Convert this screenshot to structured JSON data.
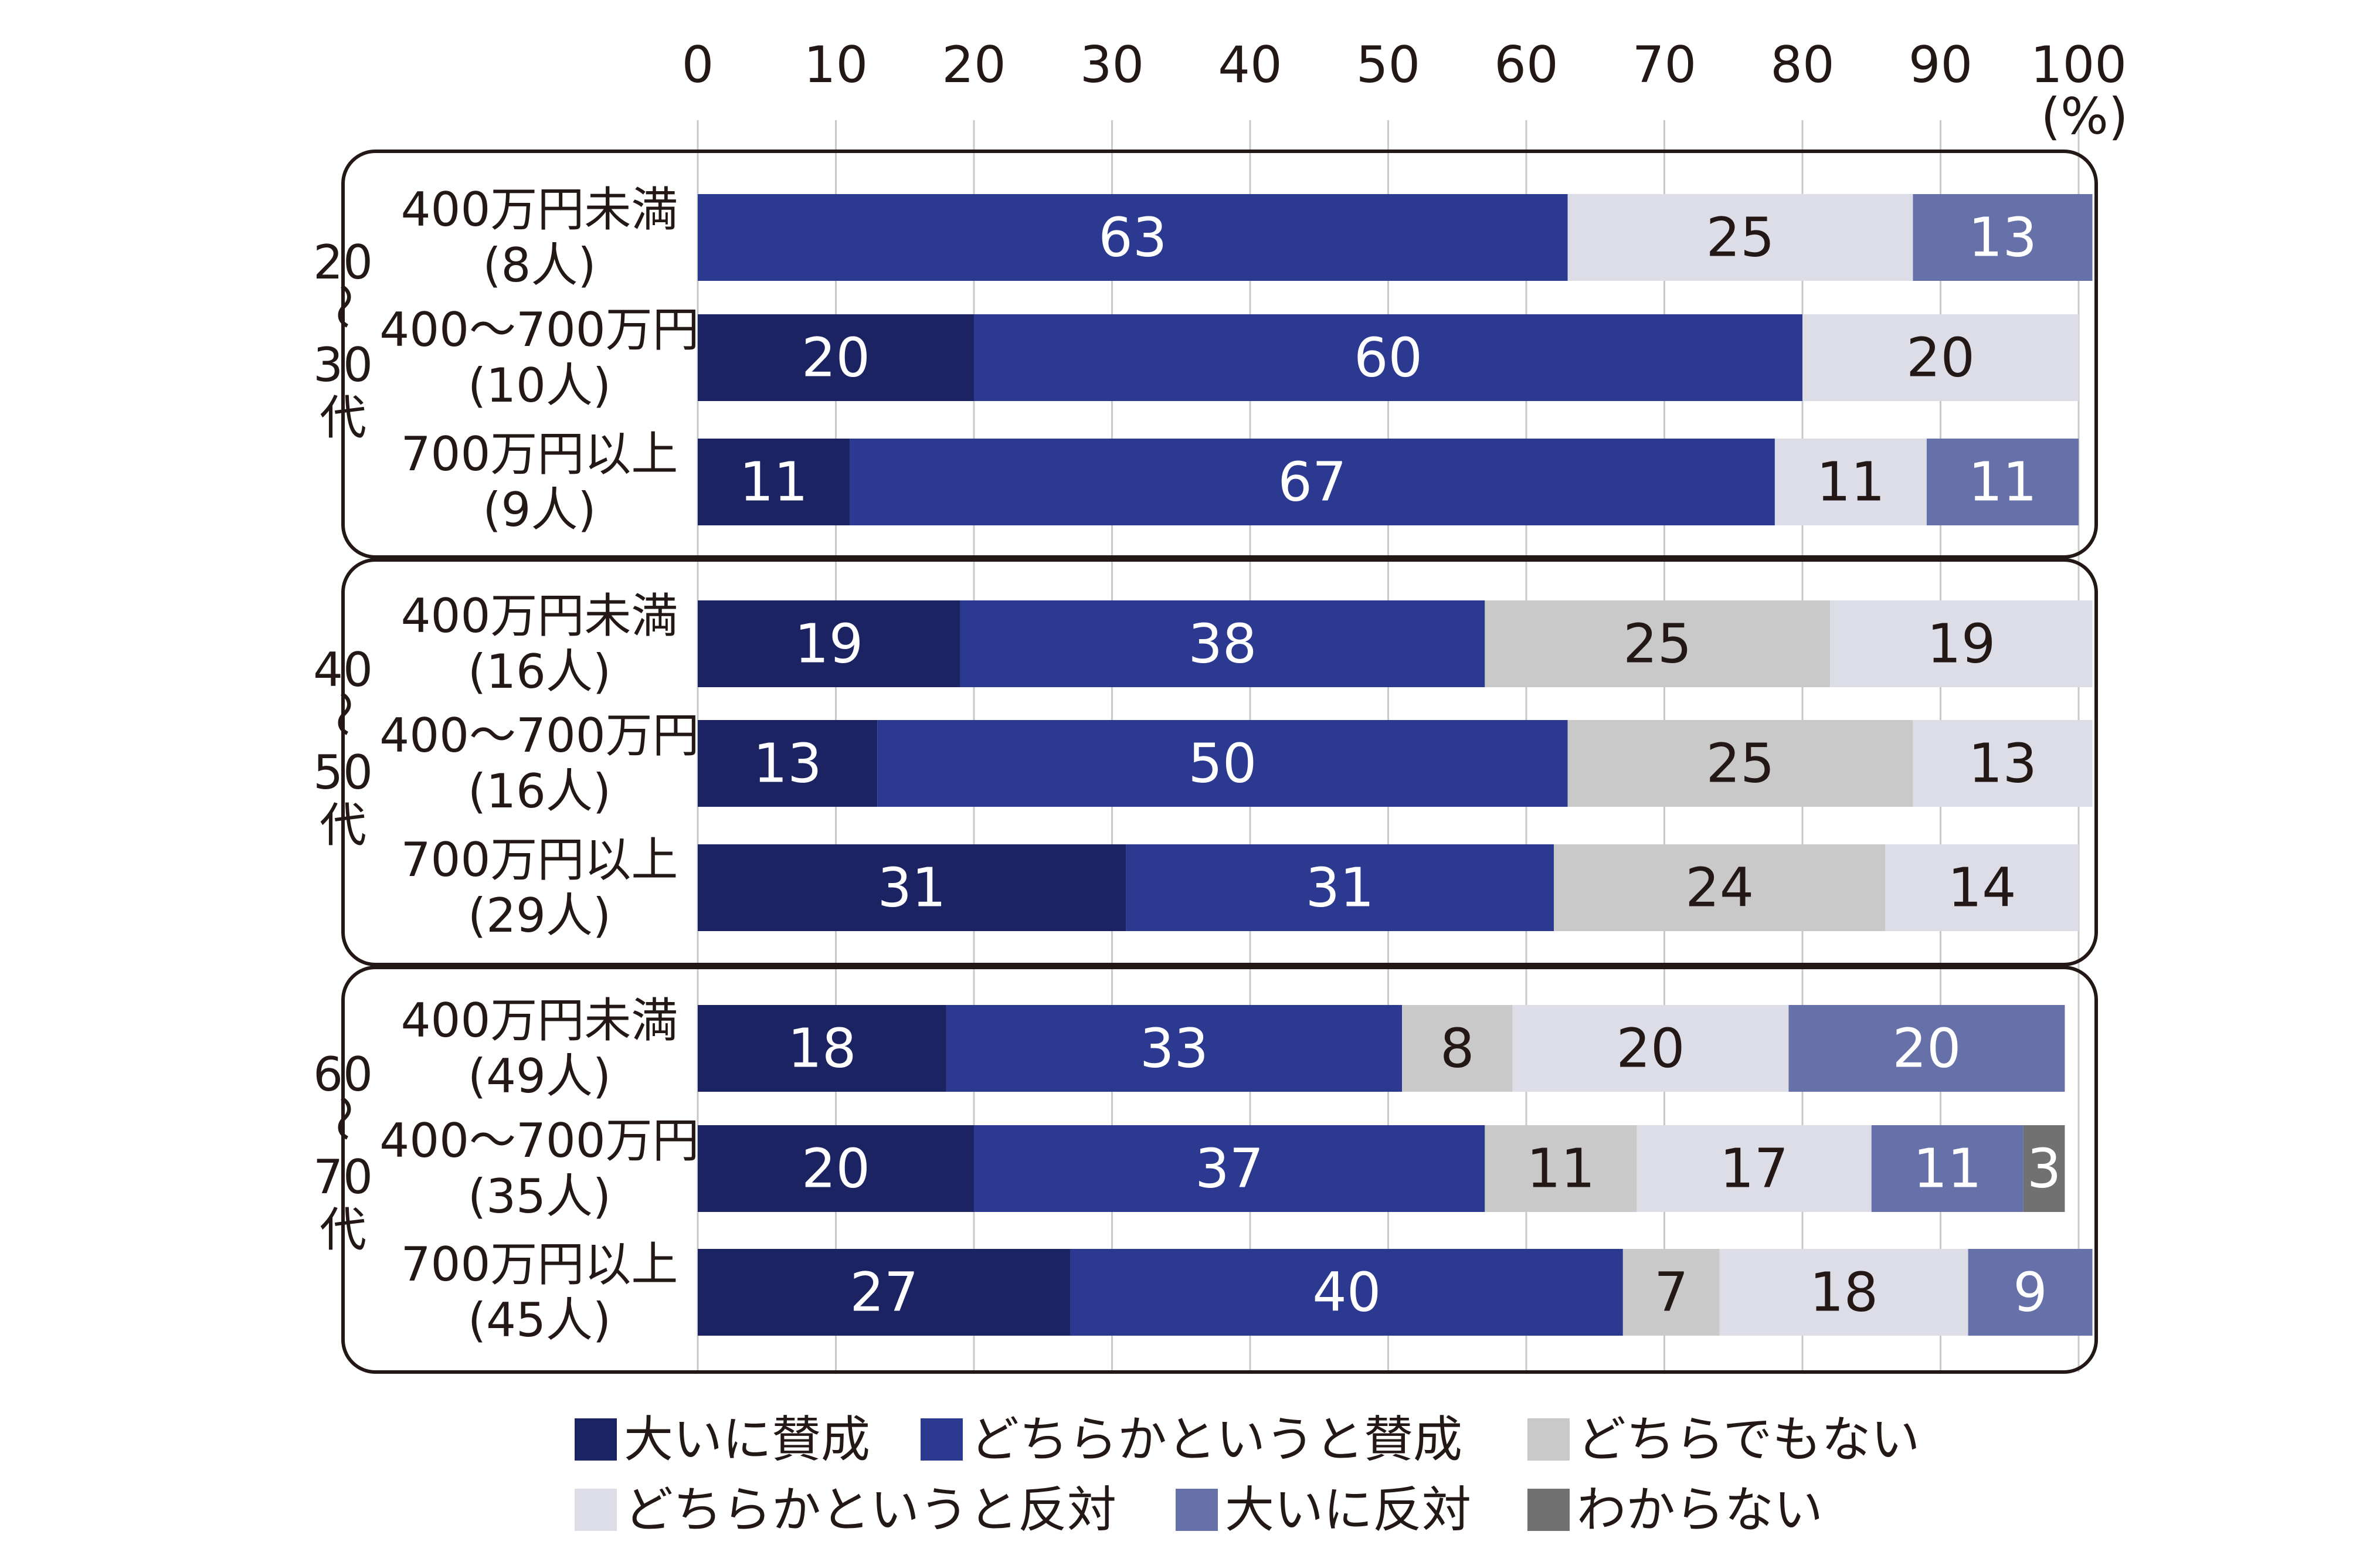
{
  "chart_data": {
    "type": "bar",
    "orientation": "horizontal",
    "stacked": true,
    "xlim": [
      0,
      100
    ],
    "xticks": [
      "0",
      "10",
      "20",
      "30",
      "40",
      "50",
      "60",
      "70",
      "80",
      "90",
      "100"
    ],
    "unit_label": "(%)",
    "groups": [
      {
        "label": [
          "20",
          "〜",
          "30",
          "代"
        ],
        "categories": [
          {
            "label1": "400万円未満",
            "label2": "(8人)",
            "values": [
              0,
              63,
              0,
              25,
              13,
              0
            ]
          },
          {
            "label1": "400〜700万円",
            "label2": "(10人)",
            "values": [
              20,
              60,
              0,
              20,
              0,
              0
            ]
          },
          {
            "label1": "700万円以上",
            "label2": "(9人)",
            "values": [
              11,
              67,
              0,
              11,
              11,
              0
            ]
          }
        ]
      },
      {
        "label": [
          "40",
          "〜",
          "50",
          "代"
        ],
        "categories": [
          {
            "label1": "400万円未満",
            "label2": "(16人)",
            "values": [
              19,
              38,
              25,
              19,
              0,
              0
            ]
          },
          {
            "label1": "400〜700万円",
            "label2": "(16人)",
            "values": [
              13,
              50,
              25,
              13,
              0,
              0
            ]
          },
          {
            "label1": "700万円以上",
            "label2": "(29人)",
            "values": [
              31,
              31,
              24,
              14,
              0,
              0
            ]
          }
        ]
      },
      {
        "label": [
          "60",
          "〜",
          "70",
          "代"
        ],
        "categories": [
          {
            "label1": "400万円未満",
            "label2": "(49人)",
            "values": [
              18,
              33,
              8,
              20,
              20,
              0
            ]
          },
          {
            "label1": "400〜700万円",
            "label2": "(35人)",
            "values": [
              20,
              37,
              11,
              17,
              11,
              3
            ]
          },
          {
            "label1": "700万円以上",
            "label2": "(45人)",
            "values": [
              27,
              40,
              7,
              18,
              9,
              0
            ]
          }
        ]
      }
    ],
    "series": [
      {
        "name": "大いに賛成",
        "color": "#1b2362",
        "text_color": "#ffffff"
      },
      {
        "name": "どちらかというと賛成",
        "color": "#2b3990",
        "text_color": "#ffffff"
      },
      {
        "name": "どちらでもない",
        "color": "#c9c9ca",
        "text_color": "#231815"
      },
      {
        "name": "どちらかというと反対",
        "color": "#dcdde6",
        "text_color": "#231815"
      },
      {
        "name": "大いに反対",
        "color": "#6670a9",
        "text_color": "#ffffff"
      },
      {
        "name": "わからない",
        "color": "#727171",
        "text_color": "#ffffff"
      }
    ]
  }
}
